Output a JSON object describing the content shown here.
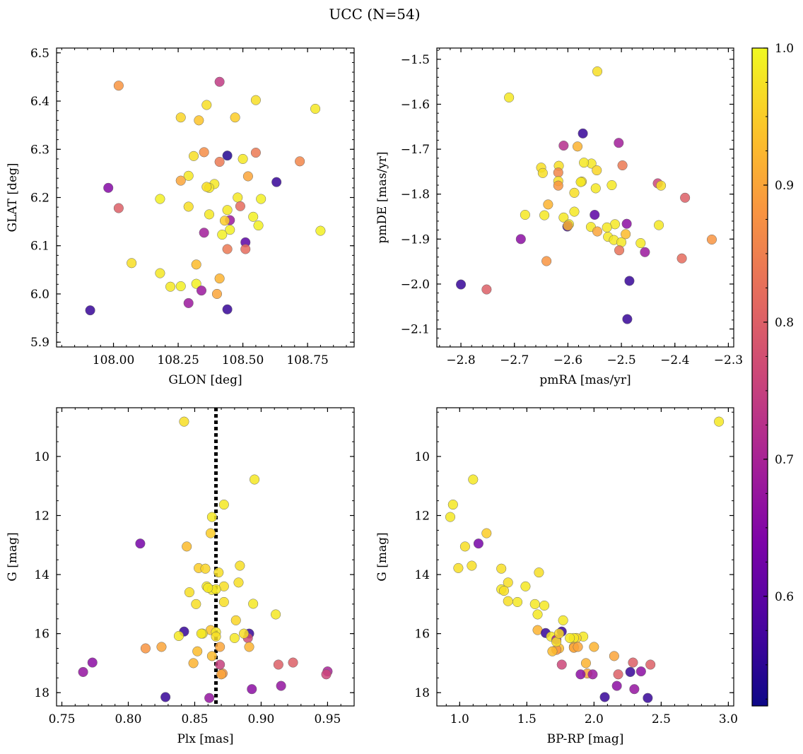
{
  "figure": {
    "title": "UCC (N=54)"
  },
  "colorbar": {
    "colormap": "plasma",
    "min": 0.52,
    "max": 1.0,
    "ticks": [
      0.6,
      0.7,
      0.8,
      0.9,
      1.0
    ],
    "tick_labels": [
      "0.6",
      "0.7",
      "0.8",
      "0.9",
      "1.0"
    ]
  },
  "chart_data": [
    {
      "type": "scatter",
      "xlabel": "GLON [deg]",
      "ylabel": "GLAT [deg]",
      "xlim": [
        107.78,
        108.93
      ],
      "ylim": [
        5.89,
        6.51
      ],
      "xticks": [
        108.0,
        108.25,
        108.5,
        108.75
      ],
      "xtick_labels": [
        "108.00",
        "108.25",
        "108.50",
        "108.75"
      ],
      "yticks": [
        5.9,
        6.0,
        6.1,
        6.2,
        6.3,
        6.4,
        6.5
      ],
      "ytick_labels": [
        "5.9",
        "6.0",
        "6.1",
        "6.2",
        "6.3",
        "6.4",
        "6.5"
      ],
      "x": [
        108.02,
        108.41,
        108.36,
        108.47,
        108.55,
        108.78,
        108.26,
        108.33,
        108.35,
        108.44,
        108.41,
        108.31,
        108.5,
        108.55,
        108.72,
        108.29,
        108.26,
        108.52,
        108.63,
        107.98,
        108.39,
        108.37,
        108.48,
        108.18,
        108.57,
        108.02,
        108.29,
        108.49,
        108.44,
        108.37,
        108.54,
        108.45,
        108.43,
        108.56,
        108.8,
        108.35,
        108.45,
        108.42,
        108.51,
        108.51,
        108.44,
        108.07,
        108.18,
        108.32,
        108.22,
        108.26,
        108.32,
        108.41,
        108.34,
        108.29,
        107.91,
        108.44,
        108.36,
        108.4
      ],
      "y": [
        6.432,
        6.44,
        6.392,
        6.366,
        6.402,
        6.384,
        6.366,
        6.36,
        6.294,
        6.287,
        6.274,
        6.286,
        6.28,
        6.293,
        6.275,
        6.245,
        6.235,
        6.244,
        6.232,
        6.22,
        6.228,
        6.22,
        6.2,
        6.197,
        6.197,
        6.178,
        6.181,
        6.182,
        6.174,
        6.165,
        6.16,
        6.153,
        6.152,
        6.142,
        6.131,
        6.127,
        6.133,
        6.123,
        6.107,
        6.093,
        6.093,
        6.064,
        6.043,
        6.061,
        6.015,
        6.016,
        6.021,
        6.032,
        6.007,
        5.981,
        5.966,
        5.968,
        6.222,
        6.0
      ],
      "memb_prob": [
        0.88,
        0.74,
        0.97,
        0.95,
        0.97,
        0.98,
        0.96,
        0.94,
        0.87,
        0.54,
        0.84,
        0.97,
        0.98,
        0.84,
        0.86,
        0.98,
        0.9,
        0.9,
        0.56,
        0.65,
        0.98,
        0.98,
        0.98,
        0.99,
        0.99,
        0.8,
        0.97,
        0.82,
        0.98,
        0.98,
        0.99,
        0.68,
        0.95,
        0.99,
        0.99,
        0.69,
        0.99,
        0.99,
        0.6,
        0.82,
        0.84,
        0.97,
        0.98,
        0.93,
        0.98,
        0.99,
        0.99,
        0.92,
        0.68,
        0.68,
        0.56,
        0.56,
        0.97,
        0.9
      ]
    },
    {
      "type": "scatter",
      "xlabel": "pmRA [mas/yr]",
      "ylabel": "pmDE [mas/yr]",
      "xlim": [
        -2.845,
        -2.29
      ],
      "ylim": [
        -2.14,
        -1.475
      ],
      "xticks": [
        -2.8,
        -2.7,
        -2.6,
        -2.5,
        -2.4,
        -2.3
      ],
      "xtick_labels": [
        "−2.8",
        "−2.7",
        "−2.6",
        "−2.5",
        "−2.4",
        "−2.3"
      ],
      "yticks": [
        -2.1,
        -2.0,
        -1.9,
        -1.8,
        -1.7,
        -1.6,
        -1.5
      ],
      "ytick_labels": [
        "−2.1",
        "−2.0",
        "−1.9",
        "−1.8",
        "−1.7",
        "−1.6",
        "−1.5"
      ],
      "x": [
        -2.545,
        -2.71,
        -2.572,
        -2.608,
        -2.505,
        -2.582,
        -2.617,
        -2.556,
        -2.498,
        -2.65,
        -2.618,
        -2.647,
        -2.546,
        -2.618,
        -2.574,
        -2.576,
        -2.432,
        -2.426,
        -2.618,
        -2.548,
        -2.588,
        -2.381,
        -2.637,
        -2.68,
        -2.644,
        -2.588,
        -2.608,
        -2.598,
        -2.601,
        -2.55,
        -2.512,
        -2.527,
        -2.557,
        -2.545,
        -2.49,
        -2.525,
        -2.514,
        -2.5,
        -2.492,
        -2.464,
        -2.43,
        -2.688,
        -2.456,
        -2.504,
        -2.331,
        -2.387,
        -2.8,
        -2.752,
        -2.64,
        -2.485,
        -2.489,
        -2.518,
        -2.57,
        -2.6
      ],
      "y": [
        -1.527,
        -1.585,
        -1.665,
        -1.692,
        -1.686,
        -1.694,
        -1.737,
        -1.732,
        -1.736,
        -1.741,
        -1.752,
        -1.753,
        -1.747,
        -1.771,
        -1.772,
        -1.773,
        -1.776,
        -1.781,
        -1.781,
        -1.787,
        -1.797,
        -1.808,
        -1.823,
        -1.846,
        -1.847,
        -1.839,
        -1.852,
        -1.867,
        -1.872,
        -1.846,
        -1.867,
        -1.874,
        -1.873,
        -1.883,
        -1.866,
        -1.895,
        -1.902,
        -1.907,
        -1.889,
        -1.909,
        -1.869,
        -1.9,
        -1.929,
        -1.925,
        -1.901,
        -1.943,
        -2.001,
        -2.012,
        -1.949,
        -1.993,
        -2.078,
        -1.78,
        -1.73,
        -1.87
      ],
      "memb_prob": [
        0.97,
        0.98,
        0.56,
        0.72,
        0.69,
        0.92,
        0.97,
        0.98,
        0.84,
        0.97,
        0.86,
        0.97,
        0.96,
        0.97,
        0.97,
        0.98,
        0.76,
        0.97,
        0.88,
        0.98,
        0.97,
        0.8,
        0.92,
        0.98,
        0.98,
        0.98,
        0.98,
        0.98,
        0.56,
        0.6,
        0.98,
        0.98,
        0.98,
        0.9,
        0.66,
        0.98,
        0.98,
        0.98,
        0.93,
        0.98,
        0.98,
        0.66,
        0.68,
        0.83,
        0.88,
        0.82,
        0.56,
        0.8,
        0.88,
        0.56,
        0.56,
        0.98,
        0.98,
        0.92
      ]
    },
    {
      "type": "scatter",
      "xlabel": "Plx [mas]",
      "ylabel": "G [mag]",
      "xlim": [
        0.746,
        0.97
      ],
      "ylim": [
        18.45,
        8.35
      ],
      "y_inverted": true,
      "reference_line": {
        "axis": "x",
        "value": 0.866,
        "style": "dotted"
      },
      "xticks": [
        0.75,
        0.8,
        0.85,
        0.9,
        0.95
      ],
      "xtick_labels": [
        "0.75",
        "0.80",
        "0.85",
        "0.90",
        "0.95"
      ],
      "yticks": [
        10,
        12,
        14,
        16,
        18
      ],
      "ytick_labels": [
        "10",
        "12",
        "14",
        "16",
        "18"
      ],
      "x": [
        0.842,
        0.895,
        0.872,
        0.863,
        0.862,
        0.809,
        0.844,
        0.884,
        0.853,
        0.868,
        0.858,
        0.883,
        0.872,
        0.859,
        0.846,
        0.863,
        0.866,
        0.872,
        0.894,
        0.851,
        0.911,
        0.881,
        0.862,
        0.842,
        0.866,
        0.856,
        0.891,
        0.866,
        0.89,
        0.813,
        0.869,
        0.825,
        0.852,
        0.849,
        0.891,
        0.863,
        0.871,
        0.87,
        0.869,
        0.838,
        0.773,
        0.766,
        0.913,
        0.924,
        0.95,
        0.949,
        0.893,
        0.915,
        0.828,
        0.861,
        0.887,
        0.88,
        0.855,
        0.86
      ],
      "y": [
        8.82,
        10.78,
        11.63,
        12.05,
        12.6,
        12.95,
        13.05,
        13.7,
        13.78,
        13.93,
        13.8,
        14.27,
        14.4,
        14.4,
        14.6,
        14.52,
        14.5,
        14.93,
        14.99,
        15.0,
        15.35,
        15.55,
        15.88,
        15.93,
        15.95,
        16.0,
        16.0,
        16.1,
        16.15,
        16.5,
        16.45,
        16.45,
        16.6,
        17.0,
        16.45,
        16.76,
        17.35,
        17.38,
        17.05,
        16.08,
        16.98,
        17.3,
        17.05,
        16.98,
        17.28,
        17.38,
        17.88,
        17.77,
        18.15,
        18.18,
        16.0,
        16.15,
        16.0,
        14.45
      ],
      "memb_prob": [
        0.97,
        0.98,
        0.98,
        0.98,
        0.95,
        0.63,
        0.93,
        0.97,
        0.95,
        0.97,
        0.96,
        0.97,
        0.97,
        0.98,
        0.97,
        0.98,
        0.98,
        0.97,
        0.98,
        0.97,
        0.98,
        0.96,
        0.94,
        0.56,
        0.98,
        0.98,
        0.56,
        0.97,
        0.77,
        0.88,
        0.9,
        0.9,
        0.93,
        0.92,
        0.92,
        0.93,
        0.88,
        0.9,
        0.75,
        0.98,
        0.66,
        0.67,
        0.8,
        0.8,
        0.7,
        0.76,
        0.66,
        0.67,
        0.56,
        0.67,
        0.97,
        0.98,
        0.98,
        0.98
      ]
    },
    {
      "type": "scatter",
      "xlabel": "BP-RP [mag]",
      "ylabel": "G [mag]",
      "xlim": [
        0.83,
        3.04
      ],
      "ylim": [
        18.45,
        8.35
      ],
      "y_inverted": true,
      "xticks": [
        1.0,
        1.5,
        2.0,
        2.5,
        3.0
      ],
      "xtick_labels": [
        "1.0",
        "1.5",
        "2.0",
        "2.5",
        "3.0"
      ],
      "yticks": [
        10,
        12,
        14,
        16,
        18
      ],
      "ytick_labels": [
        "10",
        "12",
        "14",
        "16",
        "18"
      ],
      "x": [
        2.93,
        1.1,
        0.95,
        0.93,
        1.2,
        1.14,
        1.04,
        1.09,
        0.99,
        1.31,
        1.59,
        1.36,
        1.49,
        1.31,
        1.33,
        1.36,
        1.43,
        1.56,
        1.58,
        1.77,
        1.58,
        1.64,
        1.76,
        1.92,
        1.87,
        1.68,
        1.72,
        1.85,
        1.85,
        1.74,
        2.0,
        1.85,
        1.88,
        1.72,
        2.15,
        1.69,
        1.94,
        1.95,
        1.76,
        1.9,
        1.99,
        2.17,
        2.3,
        2.42,
        2.27,
        2.35,
        2.18,
        2.29,
        2.08,
        2.4,
        1.72,
        1.82,
        1.74,
        1.63
      ],
      "y": [
        8.82,
        10.78,
        11.63,
        12.05,
        12.6,
        12.95,
        13.05,
        13.7,
        13.78,
        13.8,
        13.93,
        14.27,
        14.4,
        14.5,
        14.55,
        14.9,
        14.93,
        15.0,
        15.35,
        15.55,
        15.88,
        15.98,
        15.93,
        16.1,
        16.15,
        16.1,
        16.2,
        16.15,
        16.45,
        16.5,
        16.45,
        16.48,
        16.45,
        16.55,
        16.76,
        16.6,
        17.0,
        17.35,
        17.05,
        17.38,
        17.38,
        17.77,
        17.88,
        17.05,
        17.3,
        17.28,
        17.38,
        16.98,
        18.15,
        18.18,
        16.28,
        16.15,
        16.0,
        15.05
      ],
      "memb_prob": [
        0.98,
        0.98,
        0.98,
        0.98,
        0.95,
        0.63,
        0.97,
        0.97,
        0.97,
        0.97,
        0.97,
        0.97,
        0.98,
        0.98,
        0.97,
        0.97,
        0.98,
        0.98,
        0.98,
        0.98,
        0.92,
        0.56,
        0.56,
        0.98,
        0.96,
        0.98,
        0.68,
        0.98,
        0.92,
        0.93,
        0.92,
        0.9,
        0.9,
        0.88,
        0.9,
        0.93,
        0.92,
        0.9,
        0.76,
        0.66,
        0.68,
        0.66,
        0.67,
        0.8,
        0.56,
        0.66,
        0.8,
        0.8,
        0.56,
        0.56,
        0.97,
        0.98,
        0.96,
        0.98
      ]
    }
  ]
}
